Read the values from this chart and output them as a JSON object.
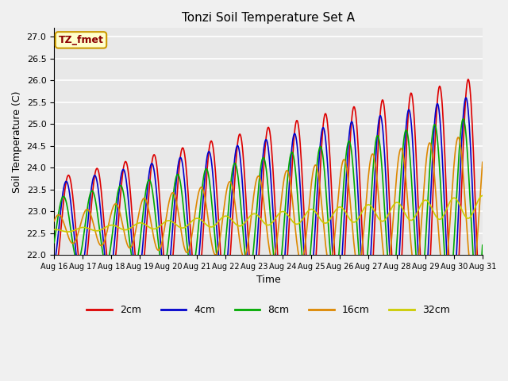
{
  "title": "Tonzi Soil Temperature Set A",
  "xlabel": "Time",
  "ylabel": "Soil Temperature (C)",
  "ylim": [
    22.0,
    27.2
  ],
  "annotation": "TZ_fmet",
  "annotation_color": "#8b0000",
  "annotation_bg": "#ffffcc",
  "annotation_border": "#cc9900",
  "colors": {
    "2cm": "#dd0000",
    "4cm": "#0000cc",
    "8cm": "#00aa00",
    "16cm": "#dd8800",
    "32cm": "#cccc00"
  },
  "plot_bg": "#e8e8e8",
  "fig_bg": "#f0f0f0",
  "grid_color": "#ffffff",
  "n_days": 15,
  "start_day": 16,
  "end_day": 31
}
